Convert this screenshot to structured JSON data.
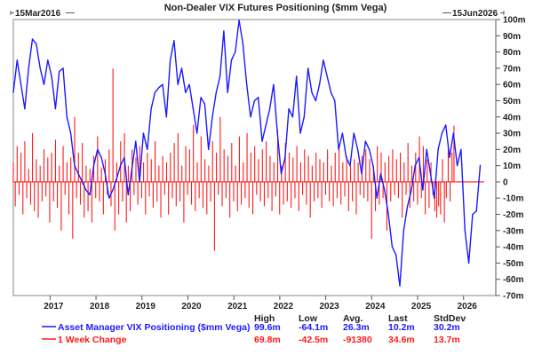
{
  "chart_data": {
    "type": "line",
    "title": "Non-Dealer VIX Futures Positioning ($mm Vega)",
    "start_date_label": "15Mar2016",
    "end_date_label": "15Jun2026",
    "xlabel": "",
    "ylabel": "",
    "x_range": [
      2016.2,
      2026.45
    ],
    "ylim": [
      -70,
      100
    ],
    "y_ticks": [
      100,
      90,
      80,
      70,
      60,
      50,
      40,
      30,
      20,
      10,
      0,
      -10,
      -20,
      -30,
      -40,
      -50,
      -60,
      -70
    ],
    "y_tick_labels": [
      "100m",
      "90m",
      "80m",
      "70m",
      "60m",
      "50m",
      "40m",
      "30m",
      "20m",
      "10m",
      "0",
      "-10m",
      "-20m",
      "-30m",
      "-40m",
      "-50m",
      "-60m",
      "-70m"
    ],
    "x_ticks": [
      2017,
      2018,
      2019,
      2020,
      2021,
      2022,
      2023,
      2024,
      2025,
      2026
    ],
    "x_tick_labels": [
      "2017",
      "2018",
      "2019",
      "2020",
      "2021",
      "2022",
      "2023",
      "2024",
      "2025",
      "2026"
    ],
    "grid": false,
    "legend_position": "bottom-left",
    "stats_headers": [
      "High",
      "Low",
      "Avg.",
      "Last",
      "StdDev"
    ],
    "series": [
      {
        "name": "Asset Manager VIX Positioning ($mm Vega)",
        "style": "line",
        "color": "#1a1aff",
        "x_start": 2016.2,
        "x_step": 0.0833,
        "values": [
          55,
          75,
          60,
          45,
          70,
          88,
          85,
          70,
          60,
          75,
          65,
          45,
          68,
          70,
          40,
          30,
          10,
          5,
          0,
          -5,
          -8,
          10,
          20,
          15,
          5,
          -10,
          -5,
          2,
          10,
          15,
          -8,
          8,
          25,
          0,
          30,
          20,
          45,
          55,
          58,
          60,
          40,
          75,
          87,
          60,
          70,
          55,
          60,
          45,
          30,
          52,
          48,
          20,
          40,
          55,
          65,
          93,
          55,
          75,
          80,
          99.6,
          85,
          60,
          40,
          50,
          52,
          25,
          35,
          45,
          60,
          30,
          5,
          15,
          45,
          40,
          65,
          30,
          40,
          70,
          55,
          50,
          60,
          75,
          65,
          55,
          50,
          20,
          30,
          15,
          10,
          30,
          20,
          5,
          25,
          20,
          10,
          -10,
          5,
          -5,
          -20,
          -40,
          -45,
          -64.1,
          -30,
          -15,
          -5,
          10,
          15,
          -5,
          20,
          5,
          -10,
          20,
          30,
          35,
          15,
          30,
          10,
          20,
          -30,
          -50,
          -20,
          -18,
          10.2
        ],
        "stats": [
          "99.6m",
          "-64.1m",
          "26.3m",
          "10.2m",
          "30.2m"
        ]
      },
      {
        "name": "1 Week Change",
        "style": "bar",
        "color": "#ff1a1a",
        "x_start": 2016.2,
        "x_step": 0.0417,
        "values": [
          12,
          -15,
          22,
          -8,
          18,
          -20,
          25,
          -10,
          8,
          -14,
          30,
          -18,
          14,
          -22,
          10,
          -12,
          20,
          -9,
          15,
          -25,
          18,
          -12,
          26,
          -16,
          10,
          -30,
          22,
          -8,
          12,
          -20,
          15,
          -35,
          40,
          -10,
          18,
          -14,
          24,
          -22,
          10,
          -18,
          8,
          -25,
          16,
          -10,
          28,
          -12,
          9,
          -20,
          14,
          -8,
          20,
          -15,
          69.8,
          -30,
          12,
          -20,
          25,
          -12,
          30,
          -25,
          10,
          -18,
          20,
          -8,
          15,
          -14,
          22,
          -10,
          12,
          -20,
          18,
          -9,
          14,
          -16,
          25,
          -12,
          10,
          -22,
          16,
          -8,
          12,
          -20,
          18,
          -10,
          24,
          -15,
          30,
          -12,
          10,
          -25,
          22,
          -8,
          20,
          -14,
          35,
          -18,
          12,
          -10,
          28,
          -16,
          14,
          -20,
          10,
          -12,
          25,
          -42.5,
          18,
          -8,
          40,
          -15,
          20,
          -10,
          16,
          -22,
          24,
          -12,
          10,
          -18,
          28,
          -14,
          12,
          -10,
          30,
          -16,
          18,
          -20,
          22,
          -8,
          14,
          -12,
          20,
          -15,
          25,
          -10,
          16,
          -18,
          12,
          -9,
          32,
          -20,
          10,
          -14,
          24,
          -12,
          18,
          -16,
          15,
          -10,
          22,
          -18,
          12,
          -8,
          20,
          -14,
          16,
          -22,
          10,
          -12,
          18,
          -10,
          14,
          -16,
          12,
          -8,
          20,
          -12,
          10,
          -15,
          18,
          -10,
          22,
          -14,
          12,
          -9,
          16,
          -18,
          10,
          -12,
          14,
          -20,
          12,
          -8,
          16,
          -10,
          20,
          -12,
          14,
          -35,
          10,
          -18,
          22,
          -14,
          18,
          -10,
          12,
          -30,
          16,
          -12,
          20,
          -8,
          14,
          -10,
          18,
          -22,
          12,
          -8,
          24,
          -16,
          10,
          -12,
          18,
          -14,
          28,
          -10,
          22,
          -20,
          14,
          -16,
          12,
          -8,
          -18,
          -22,
          -15,
          -20,
          14,
          -25,
          -10,
          22,
          -12,
          18,
          34.6
        ],
        "stats": [
          "69.8m",
          "-42.5m",
          "-91380",
          "34.6m",
          "13.7m"
        ]
      }
    ]
  }
}
